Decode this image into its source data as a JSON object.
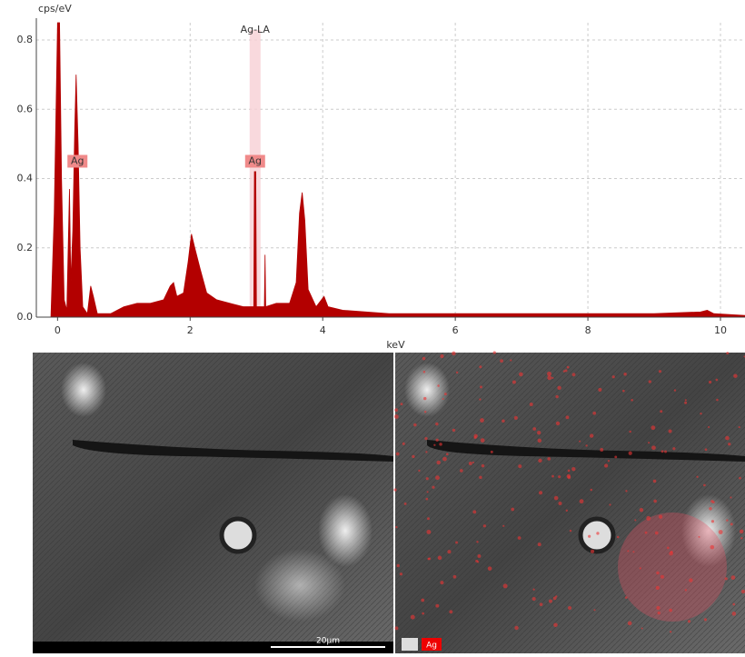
{
  "chart_data": {
    "type": "area",
    "ylabel": "cps/eV",
    "xlabel": "keV",
    "xlim": [
      -0.32,
      10.37
    ],
    "ylim": [
      0,
      0.85
    ],
    "xticks": [
      0,
      2,
      4,
      6,
      8,
      10
    ],
    "yticks": [
      {
        "value": 0,
        "label": "0.0"
      },
      0.2,
      0.4,
      0.6,
      0.8
    ],
    "grid": true,
    "color": "#b30000",
    "x": [
      -0.3,
      -0.1,
      -0.05,
      0,
      0.03,
      0.06,
      0.1,
      0.14,
      0.18,
      0.2,
      0.23,
      0.26,
      0.28,
      0.31,
      0.34,
      0.38,
      0.45,
      0.5,
      0.54,
      0.6,
      0.8,
      1.0,
      1.2,
      1.4,
      1.6,
      1.7,
      1.75,
      1.8,
      1.9,
      1.97,
      2.02,
      2.07,
      2.15,
      2.25,
      2.4,
      2.6,
      2.8,
      2.96,
      2.97,
      2.99,
      3.0,
      3.12,
      3.13,
      3.14,
      3.3,
      3.5,
      3.6,
      3.65,
      3.69,
      3.73,
      3.78,
      3.9,
      3.98,
      4.02,
      4.08,
      4.3,
      5,
      6,
      7,
      8,
      9,
      9.7,
      9.8,
      9.9,
      10.37
    ],
    "values": [
      0,
      0,
      0.3,
      0.85,
      0.85,
      0.4,
      0.05,
      0.02,
      0.37,
      0.1,
      0.25,
      0.55,
      0.7,
      0.5,
      0.2,
      0.03,
      0.01,
      0.09,
      0.06,
      0.01,
      0.01,
      0.03,
      0.04,
      0.04,
      0.05,
      0.09,
      0.1,
      0.06,
      0.07,
      0.16,
      0.24,
      0.2,
      0.14,
      0.07,
      0.05,
      0.04,
      0.03,
      0.03,
      0.42,
      0.42,
      0.03,
      0.03,
      0.18,
      0.03,
      0.04,
      0.04,
      0.1,
      0.3,
      0.36,
      0.28,
      0.08,
      0.03,
      0.05,
      0.06,
      0.03,
      0.02,
      0.01,
      0.01,
      0.01,
      0.01,
      0.01,
      0.015,
      0.02,
      0.01,
      0.005
    ],
    "annotations": [
      {
        "label": "Ag-LA",
        "x": 2.98
      },
      {
        "label": "Ag",
        "x": 0.3,
        "y": 0.45
      },
      {
        "label": "Ag",
        "x": 2.98,
        "y": 0.45
      }
    ]
  },
  "images": {
    "scale_bar": "20µm",
    "map_label": "Ag"
  }
}
